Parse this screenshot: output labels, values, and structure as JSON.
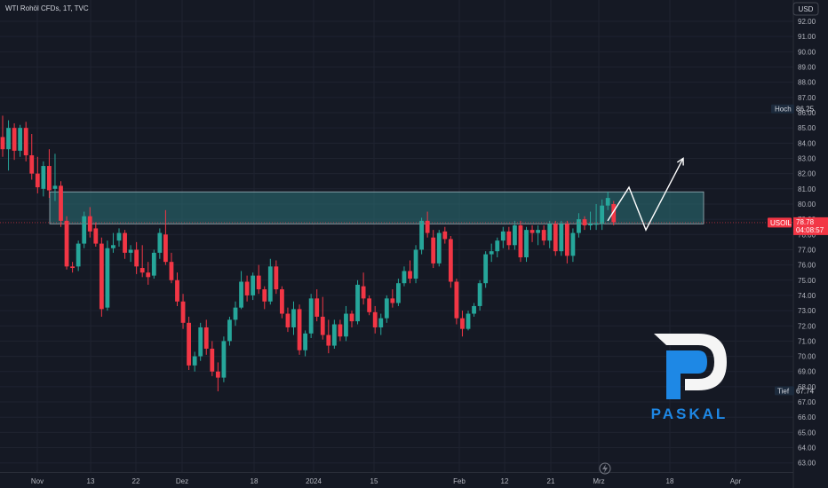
{
  "header": {
    "title": "WTI Rohöl CFDs, 1T, TVC"
  },
  "currency_button": "USD",
  "markers": {
    "high": {
      "label": "Hoch",
      "value": "86.25",
      "price": 86.25
    },
    "low": {
      "label": "Tief",
      "value": "67.74",
      "price": 67.74
    },
    "last": {
      "symbol": "USOIL",
      "value": "78.78",
      "countdown": "04:08:57",
      "price": 78.78
    }
  },
  "logo": {
    "text": "PASKAL"
  },
  "colors": {
    "up": "#26a69a",
    "down": "#f23645",
    "zone": "#2a6a72",
    "accent": "#2196f3"
  },
  "chart_data": {
    "type": "candlestick",
    "title": "WTI Rohöl CFDs, 1T, TVC",
    "y_ticks": [
      "63.00",
      "64.00",
      "65.00",
      "66.00",
      "67.00",
      "68.00",
      "69.00",
      "70.00",
      "71.00",
      "72.00",
      "73.00",
      "74.00",
      "75.00",
      "76.00",
      "77.00",
      "78.00",
      "79.00",
      "80.00",
      "81.00",
      "82.00",
      "83.00",
      "84.00",
      "85.00",
      "86.00",
      "87.00",
      "88.00",
      "89.00",
      "90.00",
      "91.00",
      "92.00"
    ],
    "x_ticks": [
      "Nov",
      "13",
      "22",
      "Dez",
      "18",
      "2024",
      "15",
      "Feb",
      "12",
      "21",
      "Mrz",
      "18",
      "Apr"
    ],
    "ylim": [
      62.4,
      93.4
    ],
    "zone": {
      "low": 78.7,
      "high": 80.8
    },
    "projection": [
      78.9,
      81.1,
      78.3,
      83.0
    ],
    "ohlc": [
      [
        84.4,
        85.8,
        83.1,
        83.6
      ],
      [
        83.6,
        85.5,
        82.2,
        85.0
      ],
      [
        85.0,
        85.3,
        82.9,
        83.5
      ],
      [
        83.5,
        85.2,
        83.1,
        85.0
      ],
      [
        85.0,
        85.4,
        82.8,
        83.2
      ],
      [
        83.2,
        84.6,
        81.6,
        82.0
      ],
      [
        82.0,
        83.1,
        80.7,
        81.1
      ],
      [
        81.0,
        82.8,
        80.5,
        82.5
      ],
      [
        82.5,
        83.6,
        80.4,
        80.9
      ],
      [
        81.0,
        83.3,
        80.2,
        81.2
      ],
      [
        81.2,
        81.5,
        78.5,
        78.9
      ],
      [
        78.9,
        79.2,
        75.7,
        75.9
      ],
      [
        75.9,
        76.2,
        75.5,
        75.8
      ],
      [
        75.9,
        77.6,
        75.6,
        77.4
      ],
      [
        77.4,
        79.5,
        77.1,
        79.2
      ],
      [
        79.2,
        79.8,
        77.8,
        78.2
      ],
      [
        78.4,
        78.8,
        77.2,
        77.4
      ],
      [
        77.4,
        77.8,
        72.6,
        73.1
      ],
      [
        73.2,
        77.6,
        73.0,
        77.1
      ],
      [
        77.1,
        78.1,
        76.8,
        77.3
      ],
      [
        77.6,
        78.4,
        77.2,
        78.1
      ],
      [
        78.1,
        78.3,
        76.4,
        76.8
      ],
      [
        76.8,
        77.3,
        76.2,
        77.0
      ],
      [
        77.0,
        77.5,
        75.4,
        75.9
      ],
      [
        75.8,
        77.3,
        75.2,
        75.5
      ],
      [
        75.5,
        76.2,
        74.7,
        75.2
      ],
      [
        75.3,
        77.0,
        75.1,
        76.8
      ],
      [
        76.8,
        78.4,
        76.4,
        78.1
      ],
      [
        78.0,
        79.6,
        76.0,
        76.2
      ],
      [
        76.2,
        76.8,
        74.8,
        75.0
      ],
      [
        75.0,
        75.5,
        73.3,
        73.6
      ],
      [
        73.6,
        74.1,
        71.8,
        72.2
      ],
      [
        72.2,
        72.6,
        69.1,
        69.4
      ],
      [
        69.4,
        70.3,
        69.0,
        70.0
      ],
      [
        70.0,
        72.2,
        69.7,
        71.9
      ],
      [
        71.9,
        72.4,
        70.1,
        70.5
      ],
      [
        70.5,
        71.0,
        68.7,
        69.0
      ],
      [
        69.0,
        69.6,
        67.7,
        68.6
      ],
      [
        68.6,
        71.3,
        68.3,
        71.0
      ],
      [
        71.0,
        72.6,
        70.7,
        72.4
      ],
      [
        72.4,
        73.6,
        72.0,
        73.2
      ],
      [
        73.2,
        75.6,
        73.1,
        74.9
      ],
      [
        74.9,
        75.3,
        73.6,
        74.0
      ],
      [
        74.0,
        75.5,
        73.7,
        75.3
      ],
      [
        75.3,
        76.0,
        74.1,
        74.4
      ],
      [
        74.4,
        74.6,
        73.1,
        73.6
      ],
      [
        73.6,
        76.4,
        73.4,
        75.9
      ],
      [
        75.9,
        76.3,
        74.1,
        74.4
      ],
      [
        74.4,
        74.6,
        72.5,
        72.8
      ],
      [
        72.8,
        73.2,
        71.6,
        71.9
      ],
      [
        71.9,
        73.6,
        71.4,
        73.1
      ],
      [
        73.1,
        73.4,
        70.1,
        70.4
      ],
      [
        70.4,
        71.7,
        70.0,
        71.5
      ],
      [
        71.5,
        74.1,
        71.2,
        73.8
      ],
      [
        73.8,
        74.4,
        72.3,
        72.6
      ],
      [
        72.6,
        73.9,
        71.1,
        71.4
      ],
      [
        71.4,
        72.4,
        70.2,
        70.7
      ],
      [
        70.7,
        72.4,
        70.5,
        72.1
      ],
      [
        72.1,
        72.4,
        71.0,
        71.3
      ],
      [
        71.3,
        73.3,
        71.0,
        72.8
      ],
      [
        72.8,
        73.0,
        71.9,
        72.3
      ],
      [
        72.3,
        75.0,
        72.1,
        74.7
      ],
      [
        74.6,
        75.5,
        73.4,
        73.8
      ],
      [
        73.8,
        74.0,
        72.7,
        72.9
      ],
      [
        72.9,
        73.3,
        71.5,
        71.9
      ],
      [
        71.9,
        72.8,
        71.4,
        72.5
      ],
      [
        72.5,
        74.0,
        72.2,
        73.8
      ],
      [
        73.8,
        74.4,
        73.2,
        73.5
      ],
      [
        73.5,
        75.1,
        73.3,
        74.8
      ],
      [
        74.8,
        75.9,
        74.6,
        75.6
      ],
      [
        75.6,
        76.3,
        74.8,
        75.1
      ],
      [
        75.1,
        77.3,
        74.8,
        77.0
      ],
      [
        77.0,
        79.1,
        76.7,
        78.9
      ],
      [
        78.9,
        79.5,
        77.8,
        78.1
      ],
      [
        77.8,
        78.3,
        75.8,
        76.1
      ],
      [
        76.1,
        78.3,
        75.9,
        78.1
      ],
      [
        78.2,
        78.5,
        77.4,
        77.7
      ],
      [
        77.7,
        77.9,
        74.5,
        74.9
      ],
      [
        74.9,
        75.1,
        72.1,
        72.5
      ],
      [
        72.5,
        73.0,
        71.3,
        71.8
      ],
      [
        71.8,
        73.0,
        71.7,
        72.8
      ],
      [
        72.8,
        73.5,
        72.6,
        73.3
      ],
      [
        73.3,
        75.0,
        73.0,
        74.8
      ],
      [
        74.8,
        76.9,
        74.5,
        76.7
      ],
      [
        76.7,
        77.4,
        76.2,
        76.9
      ],
      [
        76.9,
        77.8,
        76.5,
        77.6
      ],
      [
        77.6,
        78.5,
        77.1,
        78.2
      ],
      [
        78.2,
        78.5,
        77.0,
        77.3
      ],
      [
        77.3,
        78.9,
        77.0,
        78.6
      ],
      [
        78.6,
        78.9,
        76.2,
        76.5
      ],
      [
        76.5,
        78.5,
        76.2,
        78.3
      ],
      [
        78.3,
        78.6,
        77.5,
        78.1
      ],
      [
        78.1,
        78.6,
        77.3,
        78.3
      ],
      [
        78.3,
        78.6,
        77.3,
        77.6
      ],
      [
        77.6,
        78.9,
        77.1,
        78.7
      ],
      [
        78.7,
        78.9,
        76.6,
        76.9
      ],
      [
        76.9,
        78.9,
        76.6,
        78.7
      ],
      [
        78.7,
        78.9,
        76.1,
        76.6
      ],
      [
        76.6,
        78.4,
        76.2,
        78.1
      ],
      [
        78.1,
        79.4,
        77.8,
        79.0
      ],
      [
        79.0,
        79.2,
        78.3,
        78.6
      ],
      [
        78.6,
        79.5,
        78.3,
        78.7
      ],
      [
        78.7,
        80.0,
        78.3,
        78.7
      ],
      [
        78.7,
        80.3,
        78.3,
        79.9
      ],
      [
        79.9,
        80.8,
        79.6,
        80.4
      ],
      [
        80.0,
        80.2,
        78.6,
        78.8
      ]
    ]
  }
}
